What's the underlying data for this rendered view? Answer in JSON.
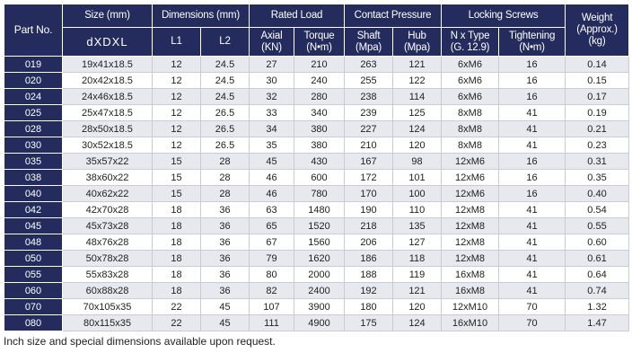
{
  "headers": {
    "part_no": "Part No.",
    "size": "Size (mm)",
    "size_sub": "dXDXL",
    "dimensions": "Dimensions (mm)",
    "l1": "L1",
    "l2": "L2",
    "rated_load": "Rated Load",
    "axial": "Axial",
    "axial_unit": "(KN)",
    "torque": "Torque",
    "torque_unit": "(N•m)",
    "contact_pressure": "Contact Pressure",
    "shaft": "Shaft",
    "shaft_unit": "(Mpa)",
    "hub": "Hub",
    "hub_unit": "(Mpa)",
    "locking_screws": "Locking Screws",
    "n_type": "N x Type",
    "n_type_sub": "(G. 12.9)",
    "tightening": "Tightening",
    "tightening_unit": "(N•m)",
    "weight": "Weight",
    "weight_sub": "(Approx.)",
    "weight_unit": "(kg)"
  },
  "rows": [
    {
      "part": "019",
      "size": "19x41x18.5",
      "l1": "12",
      "l2": "24.5",
      "axial": "27",
      "torque": "210",
      "shaft": "263",
      "hub": "121",
      "screw": "6xM6",
      "tight": "16",
      "weight": "0.14"
    },
    {
      "part": "020",
      "size": "20x42x18.5",
      "l1": "12",
      "l2": "24.5",
      "axial": "30",
      "torque": "240",
      "shaft": "255",
      "hub": "122",
      "screw": "6xM6",
      "tight": "16",
      "weight": "0.15"
    },
    {
      "part": "024",
      "size": "24x46x18.5",
      "l1": "12",
      "l2": "24.5",
      "axial": "32",
      "torque": "280",
      "shaft": "238",
      "hub": "114",
      "screw": "6xM6",
      "tight": "16",
      "weight": "0.17"
    },
    {
      "part": "025",
      "size": "25x47x18.5",
      "l1": "12",
      "l2": "26.5",
      "axial": "33",
      "torque": "340",
      "shaft": "239",
      "hub": "125",
      "screw": "8xM8",
      "tight": "41",
      "weight": "0.19"
    },
    {
      "part": "028",
      "size": "28x50x18.5",
      "l1": "12",
      "l2": "26.5",
      "axial": "34",
      "torque": "380",
      "shaft": "227",
      "hub": "124",
      "screw": "8xM8",
      "tight": "41",
      "weight": "0.21"
    },
    {
      "part": "030",
      "size": "30x52x18.5",
      "l1": "12",
      "l2": "26.5",
      "axial": "35",
      "torque": "380",
      "shaft": "210",
      "hub": "120",
      "screw": "8xM8",
      "tight": "41",
      "weight": "0.23"
    },
    {
      "part": "035",
      "size": "35x57x22",
      "l1": "15",
      "l2": "28",
      "axial": "45",
      "torque": "430",
      "shaft": "167",
      "hub": "98",
      "screw": "12xM6",
      "tight": "16",
      "weight": "0.31"
    },
    {
      "part": "038",
      "size": "38x60x22",
      "l1": "15",
      "l2": "28",
      "axial": "46",
      "torque": "600",
      "shaft": "172",
      "hub": "101",
      "screw": "12xM6",
      "tight": "16",
      "weight": "0.35"
    },
    {
      "part": "040",
      "size": "40x62x22",
      "l1": "15",
      "l2": "28",
      "axial": "46",
      "torque": "780",
      "shaft": "170",
      "hub": "100",
      "screw": "12xM6",
      "tight": "16",
      "weight": "0.40"
    },
    {
      "part": "042",
      "size": "42x70x28",
      "l1": "18",
      "l2": "36",
      "axial": "63",
      "torque": "1480",
      "shaft": "190",
      "hub": "110",
      "screw": "12xM8",
      "tight": "41",
      "weight": "0.54"
    },
    {
      "part": "045",
      "size": "45x73x28",
      "l1": "18",
      "l2": "36",
      "axial": "65",
      "torque": "1520",
      "shaft": "218",
      "hub": "135",
      "screw": "12xM8",
      "tight": "41",
      "weight": "0.55"
    },
    {
      "part": "048",
      "size": "48x76x28",
      "l1": "18",
      "l2": "36",
      "axial": "67",
      "torque": "1560",
      "shaft": "206",
      "hub": "127",
      "screw": "12xM8",
      "tight": "41",
      "weight": "0.60"
    },
    {
      "part": "050",
      "size": "50x78x28",
      "l1": "18",
      "l2": "36",
      "axial": "79",
      "torque": "1620",
      "shaft": "186",
      "hub": "118",
      "screw": "12xM8",
      "tight": "41",
      "weight": "0.61"
    },
    {
      "part": "055",
      "size": "55x83x28",
      "l1": "18",
      "l2": "36",
      "axial": "80",
      "torque": "2000",
      "shaft": "188",
      "hub": "119",
      "screw": "16xM8",
      "tight": "41",
      "weight": "0.64"
    },
    {
      "part": "060",
      "size": "60x88x28",
      "l1": "18",
      "l2": "36",
      "axial": "82",
      "torque": "2400",
      "shaft": "192",
      "hub": "121",
      "screw": "16xM8",
      "tight": "41",
      "weight": "0.74"
    },
    {
      "part": "070",
      "size": "70x105x35",
      "l1": "22",
      "l2": "45",
      "axial": "107",
      "torque": "3900",
      "shaft": "180",
      "hub": "120",
      "screw": "12xM10",
      "tight": "70",
      "weight": "1.32"
    },
    {
      "part": "080",
      "size": "80x115x35",
      "l1": "22",
      "l2": "45",
      "axial": "111",
      "axial_note": "",
      "torque": "4900",
      "shaft": "175",
      "hub": "124",
      "screw": "16xM10",
      "tight": "70",
      "weight": "1.47"
    }
  ],
  "footnote": "Inch size and special dimensions available upon request.",
  "colors": {
    "header_bg": "#232c5c",
    "row_alt": "#e8e9ef",
    "border": "#c9ccd8"
  }
}
